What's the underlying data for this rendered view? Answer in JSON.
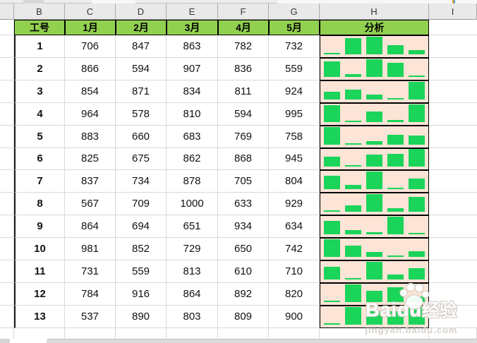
{
  "sheet": {
    "column_letters": [
      "B",
      "C",
      "D",
      "E",
      "F",
      "G",
      "H",
      "I"
    ],
    "header": {
      "id": "工号",
      "months": [
        "1月",
        "2月",
        "3月",
        "4月",
        "5月"
      ],
      "analysis": "分析"
    },
    "rows": [
      {
        "id": "1",
        "values": [
          706,
          847,
          863,
          782,
          732
        ]
      },
      {
        "id": "2",
        "values": [
          866,
          594,
          907,
          836,
          559
        ]
      },
      {
        "id": "3",
        "values": [
          854,
          871,
          834,
          811,
          924
        ]
      },
      {
        "id": "4",
        "values": [
          964,
          578,
          810,
          594,
          995
        ]
      },
      {
        "id": "5",
        "values": [
          883,
          660,
          683,
          769,
          758
        ]
      },
      {
        "id": "6",
        "values": [
          825,
          675,
          862,
          868,
          945
        ]
      },
      {
        "id": "7",
        "values": [
          837,
          734,
          878,
          705,
          804
        ]
      },
      {
        "id": "8",
        "values": [
          567,
          709,
          1000,
          633,
          929
        ]
      },
      {
        "id": "9",
        "values": [
          864,
          694,
          651,
          934,
          634
        ]
      },
      {
        "id": "10",
        "values": [
          981,
          852,
          729,
          650,
          742
        ]
      },
      {
        "id": "11",
        "values": [
          731,
          559,
          813,
          610,
          710
        ]
      },
      {
        "id": "12",
        "values": [
          784,
          916,
          864,
          892,
          820
        ]
      },
      {
        "id": "13",
        "values": [
          537,
          890,
          803,
          809,
          900
        ]
      }
    ],
    "sparkline": {
      "type": "bar",
      "scaling": "per-row min-max"
    },
    "colors": {
      "header_bg": "#92D050",
      "chart_bg": "#FCE4D6",
      "bar_green": "#1BD45A",
      "gridline": "#D9D9D9"
    }
  },
  "watermark": {
    "brand": "Baidu",
    "suffix": "经验",
    "url": "jingyan.baidu.com"
  }
}
